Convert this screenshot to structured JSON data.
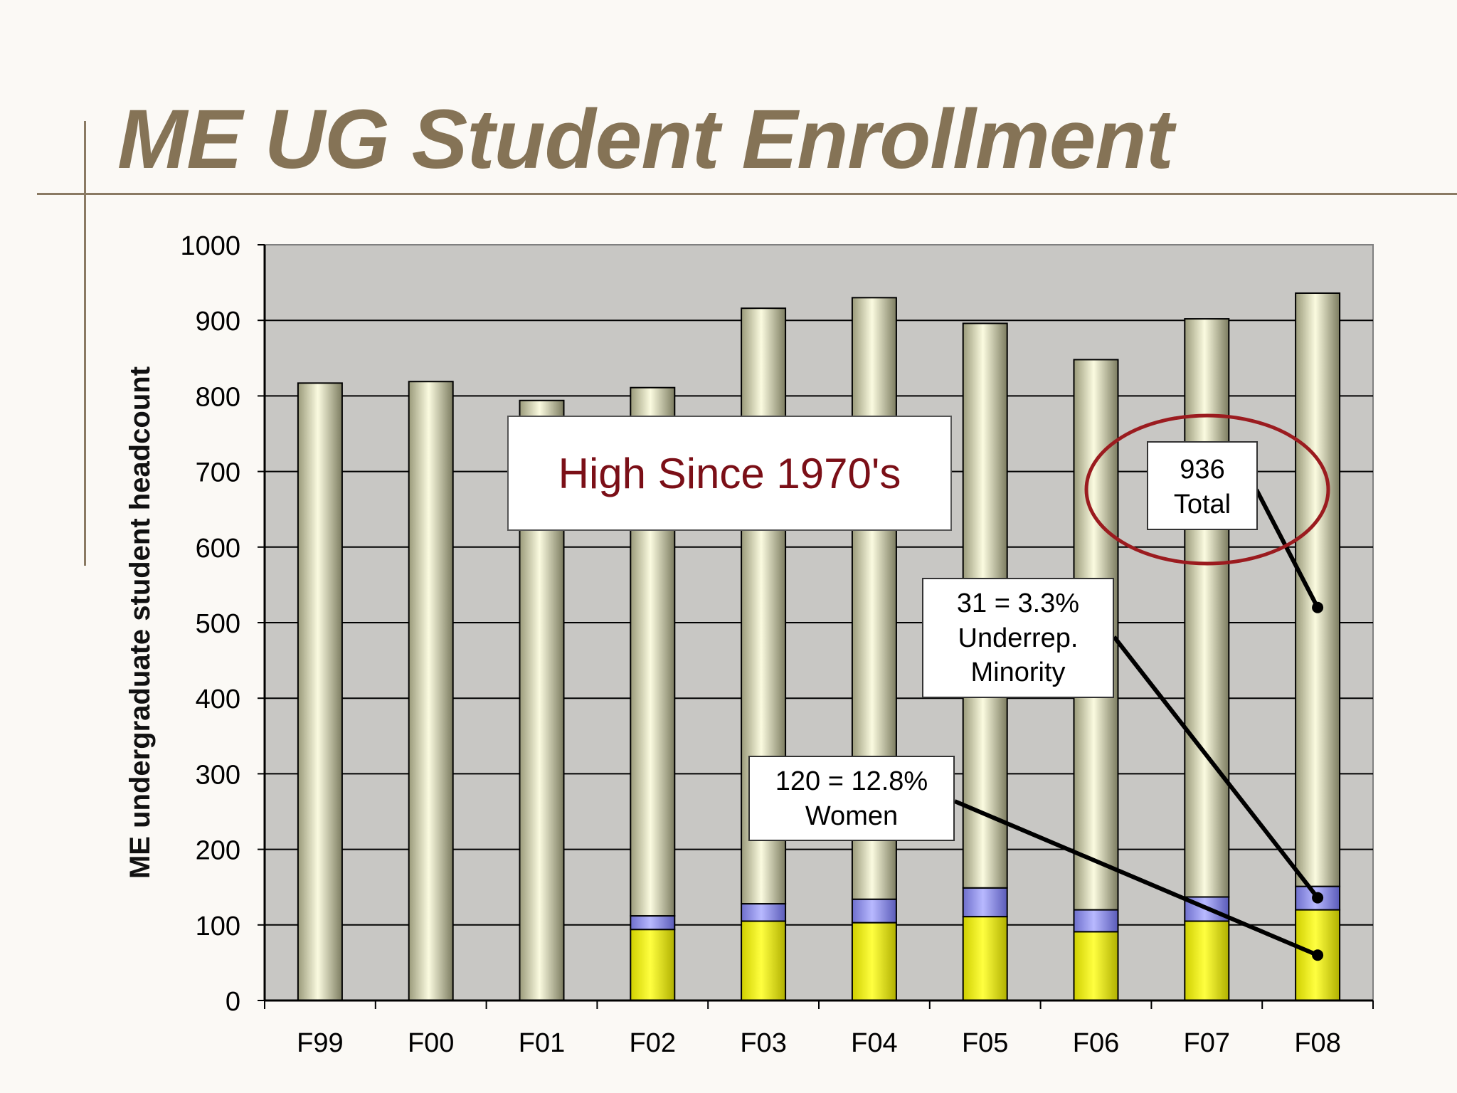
{
  "slide": {
    "title": "ME UG Student Enrollment"
  },
  "annotations": {
    "banner": "High Since 1970's",
    "total": [
      "936",
      "Total"
    ],
    "minority": [
      "31 = 3.3%",
      "Underrep.",
      "Minority"
    ],
    "women": [
      "120 = 12.8%",
      "Women"
    ]
  },
  "colors": {
    "total": "#f4f2c4",
    "minority": "#9a9cf0",
    "women": "#ffff00",
    "plot_background": "#c8c7c4",
    "highlight_ellipse": "#9b1b1f",
    "title": "#857356",
    "banner_text": "#7b0f17"
  },
  "chart_data": {
    "type": "bar",
    "stacked": true,
    "categories": [
      "F99",
      "F00",
      "F01",
      "F02",
      "F03",
      "F04",
      "F05",
      "F06",
      "F07",
      "F08"
    ],
    "series": [
      {
        "name": "Women",
        "values": [
          null,
          null,
          null,
          94,
          105,
          103,
          111,
          91,
          105,
          120
        ]
      },
      {
        "name": "Underrep. Minority",
        "values": [
          null,
          null,
          null,
          18,
          23,
          31,
          38,
          29,
          32,
          31
        ]
      },
      {
        "name": "Total",
        "values": [
          817,
          819,
          794,
          811,
          916,
          930,
          896,
          848,
          902,
          936
        ]
      }
    ],
    "ylabel": "ME undergraduate student headcount",
    "xlabel": "",
    "ylim": [
      0,
      1000
    ],
    "yticks": [
      0,
      100,
      200,
      300,
      400,
      500,
      600,
      700,
      800,
      900,
      1000
    ],
    "grid": true,
    "legend": "none"
  }
}
